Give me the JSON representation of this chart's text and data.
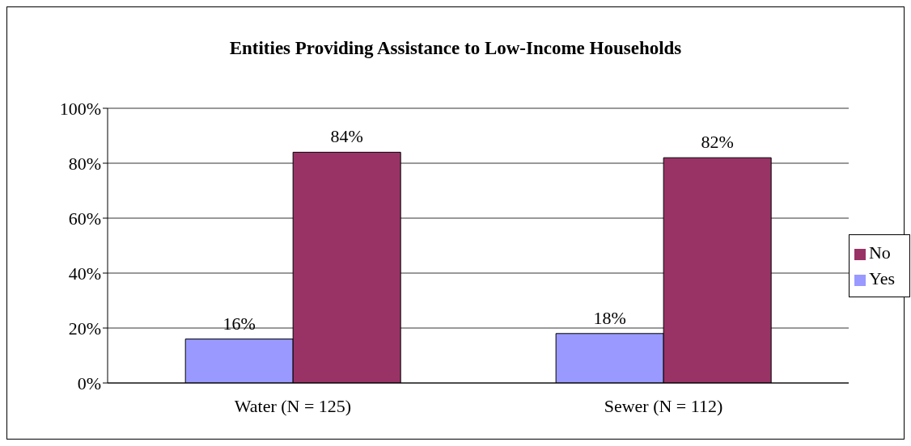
{
  "chart_data": {
    "type": "bar",
    "title": "Entities Providing Assistance to Low-Income Households",
    "categories": [
      "Water (N = 125)",
      "Sewer (N = 112)"
    ],
    "series": [
      {
        "name": "Yes",
        "color": "#9999ff",
        "values": [
          16,
          18
        ],
        "value_labels": [
          "16%",
          "18%"
        ]
      },
      {
        "name": "No",
        "color": "#993366",
        "values": [
          84,
          82
        ],
        "value_labels": [
          "84%",
          "82%"
        ]
      }
    ],
    "ylim": [
      0,
      100
    ],
    "yticks": [
      {
        "value": 0,
        "label": "0%"
      },
      {
        "value": 20,
        "label": "20%"
      },
      {
        "value": 40,
        "label": "40%"
      },
      {
        "value": 60,
        "label": "60%"
      },
      {
        "value": 80,
        "label": "80%"
      },
      {
        "value": 100,
        "label": "100%"
      }
    ],
    "grid": "y",
    "legend": "right"
  }
}
